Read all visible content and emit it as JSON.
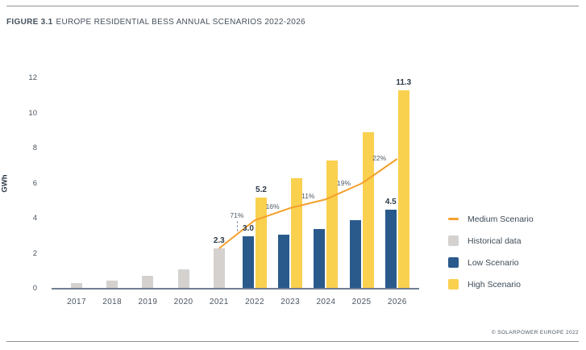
{
  "figure": {
    "title_prefix": "FIGURE 3.1",
    "title_rest": "EUROPE RESIDENTIAL BESS ANNUAL SCENARIOS 2022-2026",
    "credit": "© SOLARPOWER EUROPE 2022"
  },
  "colors": {
    "historical": "#d4d1ce",
    "low": "#2a5a8c",
    "high": "#fad04f",
    "medium": "#f4a02c"
  },
  "legend": {
    "items": [
      {
        "label": "Medium Scenario",
        "swatch": "line",
        "color_key": "medium"
      },
      {
        "label": "Historical data",
        "swatch": "square",
        "color_key": "historical"
      },
      {
        "label": "Low Scenario",
        "swatch": "square",
        "color_key": "low"
      },
      {
        "label": "High Scenario",
        "swatch": "square",
        "color_key": "high"
      }
    ]
  },
  "chart_data": {
    "type": "bar",
    "title": "Europe residential BESS annual scenarios 2022-2026",
    "ylabel": "GWh",
    "ylim": [
      0,
      12
    ],
    "yticks": [
      0,
      2,
      4,
      6,
      8,
      10,
      12
    ],
    "grid": false,
    "legend_position": "right",
    "categories": [
      2017,
      2018,
      2019,
      2020,
      2021,
      2022,
      2023,
      2024,
      2025,
      2026
    ],
    "series": [
      {
        "name": "Historical data",
        "type": "bar",
        "color_key": "historical",
        "points": [
          {
            "year": 2017,
            "value": 0.3
          },
          {
            "year": 2018,
            "value": 0.45
          },
          {
            "year": 2019,
            "value": 0.75
          },
          {
            "year": 2020,
            "value": 1.1
          },
          {
            "year": 2021,
            "value": 2.3
          }
        ]
      },
      {
        "name": "Low Scenario",
        "type": "bar",
        "color_key": "low",
        "points": [
          {
            "year": 2022,
            "value": 3.0
          },
          {
            "year": 2023,
            "value": 3.1
          },
          {
            "year": 2024,
            "value": 3.4
          },
          {
            "year": 2025,
            "value": 3.9
          },
          {
            "year": 2026,
            "value": 4.5
          }
        ]
      },
      {
        "name": "High Scenario",
        "type": "bar",
        "color_key": "high",
        "points": [
          {
            "year": 2022,
            "value": 5.2
          },
          {
            "year": 2023,
            "value": 6.3
          },
          {
            "year": 2024,
            "value": 7.3
          },
          {
            "year": 2025,
            "value": 8.9
          },
          {
            "year": 2026,
            "value": 11.3
          }
        ]
      },
      {
        "name": "Medium Scenario",
        "type": "line",
        "color_key": "medium",
        "points": [
          {
            "year": 2021,
            "value": 2.3
          },
          {
            "year": 2022,
            "value": 3.9
          },
          {
            "year": 2023,
            "value": 4.6
          },
          {
            "year": 2024,
            "value": 5.1
          },
          {
            "year": 2025,
            "value": 6.0
          },
          {
            "year": 2026,
            "value": 7.4
          }
        ]
      }
    ],
    "bar_labels": [
      {
        "year": 2021,
        "series": "historical",
        "text": "2.3"
      },
      {
        "year": 2022,
        "series": "low",
        "text": "3.0"
      },
      {
        "year": 2022,
        "series": "high",
        "text": "5.2"
      },
      {
        "year": 2026,
        "series": "low",
        "text": "4.5"
      },
      {
        "year": 2026,
        "series": "high",
        "text": "11.3"
      }
    ],
    "growth_labels": [
      {
        "from": 2021,
        "to": 2022,
        "text": "71%",
        "callout": true
      },
      {
        "from": 2022,
        "to": 2023,
        "text": "16%",
        "dy": -10
      },
      {
        "from": 2023,
        "to": 2024,
        "text": "11%",
        "dy": -10
      },
      {
        "from": 2024,
        "to": 2025,
        "text": "19%",
        "dy": -10
      },
      {
        "from": 2025,
        "to": 2026,
        "text": "22%",
        "dy": -16
      }
    ]
  }
}
